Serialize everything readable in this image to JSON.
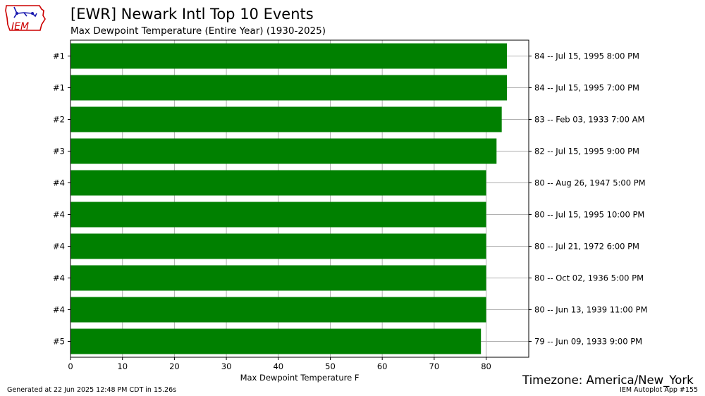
{
  "header": {
    "title": "[EWR] Newark Intl Top 10 Events",
    "subtitle": "Max Dewpoint Temperature  (Entire Year) (1930-2025)"
  },
  "logo": {
    "text": "IEM",
    "icon": "iowa-state-outline-icon"
  },
  "footer": {
    "timezone": "Timezone: America/New_York",
    "generated": "Generated at 22 Jun 2025 12:48 PM CDT in 15.26s",
    "app": "IEM Autoplot App #155"
  },
  "colors": {
    "bar": "#008000",
    "grid": "#b0b0b0",
    "logo_red": "#cc0000",
    "logo_blue": "#1a1ab0"
  },
  "chart_data": {
    "type": "bar",
    "orientation": "horizontal",
    "xlabel": "Max Dewpoint Temperature F",
    "ylabel": "",
    "xlim": [
      0,
      88.2
    ],
    "xticks": [
      0,
      10,
      20,
      30,
      40,
      50,
      60,
      70,
      80
    ],
    "grid": true,
    "ranks": [
      "#1",
      "#1",
      "#2",
      "#3",
      "#4",
      "#4",
      "#4",
      "#4",
      "#4",
      "#5"
    ],
    "values": [
      84,
      84,
      83,
      82,
      80,
      80,
      80,
      80,
      80,
      79
    ],
    "labels": [
      "84 -- Jul 15, 1995 8:00 PM",
      "84 -- Jul 15, 1995 7:00 PM",
      "83 -- Feb 03, 1933 7:00 AM",
      "82 -- Jul 15, 1995 9:00 PM",
      "80 -- Aug 26, 1947 5:00 PM",
      "80 -- Jul 15, 1995 10:00 PM",
      "80 -- Jul 21, 1972 6:00 PM",
      "80 -- Oct 02, 1936 5:00 PM",
      "80 -- Jun 13, 1939 11:00 PM",
      "79 -- Jun 09, 1933 9:00 PM"
    ]
  }
}
